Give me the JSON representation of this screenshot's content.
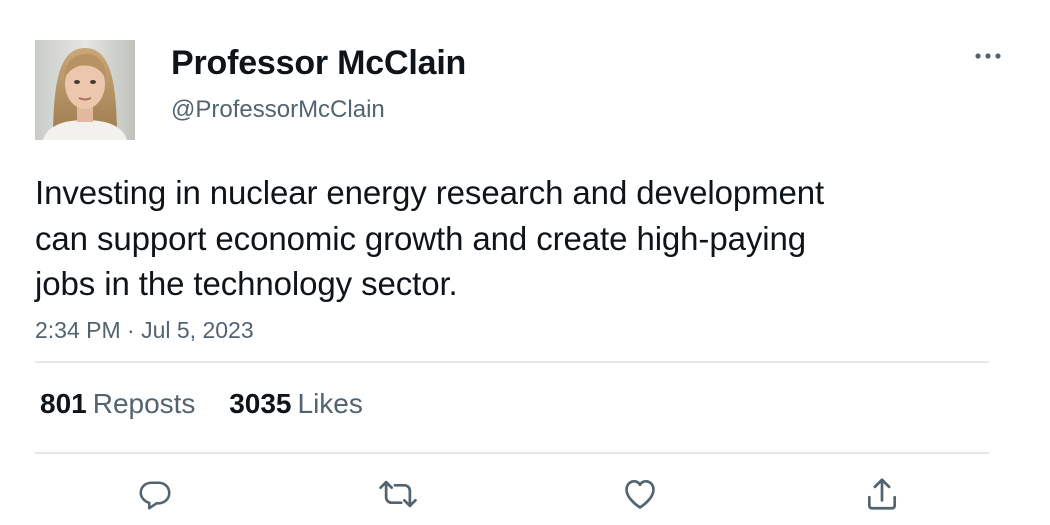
{
  "author": {
    "display_name": "Professor McClain",
    "handle": "@ProfessorMcClain",
    "avatar": "profile-photo"
  },
  "tweet": {
    "text": "Investing in nuclear energy research and development\ncan support economic growth and create high-paying\njobs in the technology sector.",
    "timestamp": "2:34 PM · Jul 5, 2023"
  },
  "stats": {
    "reposts_count": "801",
    "reposts_label": "Reposts",
    "likes_count": "3035",
    "likes_label": "Likes"
  },
  "icons": {
    "more": "more-horizontal-icon",
    "reply": "reply-icon",
    "repost": "repost-icon",
    "like": "heart-icon",
    "share": "share-icon"
  },
  "colors": {
    "text_primary": "#0f1419",
    "text_secondary": "#536471",
    "divider": "#e4e7ea"
  }
}
